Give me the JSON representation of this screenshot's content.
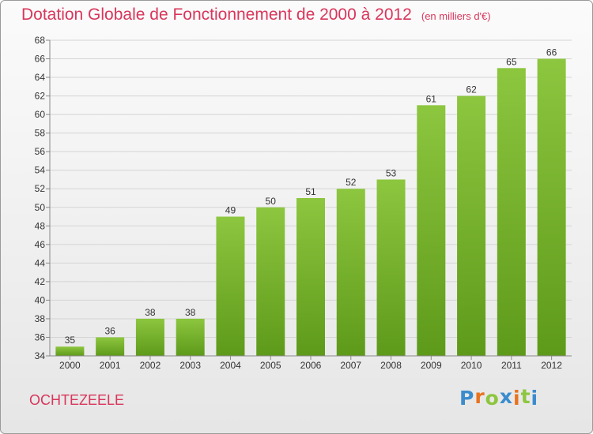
{
  "chart_data": {
    "type": "bar",
    "title": "Dotation Globale de Fonctionnement de 2000 à 2012",
    "subtitle": "(en milliers d'€)",
    "categories": [
      "2000",
      "2001",
      "2002",
      "2003",
      "2004",
      "2005",
      "2006",
      "2007",
      "2008",
      "2009",
      "2010",
      "2011",
      "2012"
    ],
    "values": [
      35,
      36,
      38,
      38,
      49,
      50,
      51,
      52,
      53,
      61,
      62,
      65,
      66
    ],
    "ylim": [
      34,
      68
    ],
    "yticks": [
      34,
      36,
      38,
      40,
      42,
      44,
      46,
      48,
      50,
      52,
      54,
      56,
      58,
      60,
      62,
      64,
      66,
      68
    ],
    "grid": true,
    "bar_color": "#8dc63f",
    "bar_color_dark": "#5e9a1a"
  },
  "commune": "OCHTEZEELE",
  "logo": {
    "text": "Proxiti",
    "letters": [
      "P",
      "r",
      "o",
      "x",
      "i",
      "t",
      "i"
    ],
    "colors": [
      "#3a8ccd",
      "#e8731f",
      "#8dc63f",
      "#3a8ccd",
      "#e8731f",
      "#8dc63f",
      "#3a8ccd"
    ]
  },
  "colors": {
    "title": "#d9365b",
    "grid": "#d4d4d4",
    "axis": "#888888"
  }
}
